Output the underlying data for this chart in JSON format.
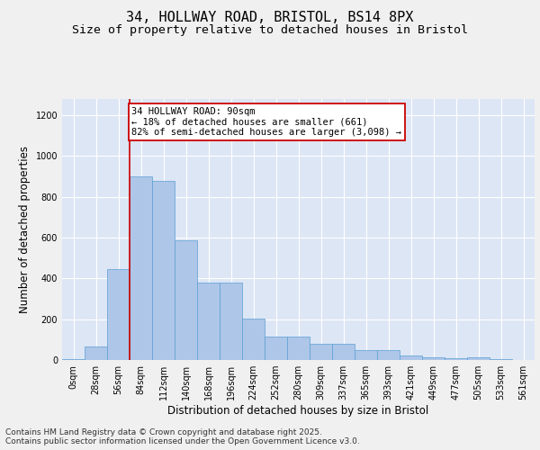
{
  "title_line1": "34, HOLLWAY ROAD, BRISTOL, BS14 8PX",
  "title_line2": "Size of property relative to detached houses in Bristol",
  "xlabel": "Distribution of detached houses by size in Bristol",
  "ylabel": "Number of detached properties",
  "bar_color": "#aec6e8",
  "bar_edge_color": "#5a9fd4",
  "background_color": "#dde6f5",
  "grid_color": "#ffffff",
  "annotation_box_color": "#cc0000",
  "vline_color": "#cc0000",
  "vline_x": 3,
  "annotation_text": "34 HOLLWAY ROAD: 90sqm\n← 18% of detached houses are smaller (661)\n82% of semi-detached houses are larger (3,098) →",
  "bin_labels": [
    "0sqm",
    "28sqm",
    "56sqm",
    "84sqm",
    "112sqm",
    "140sqm",
    "168sqm",
    "196sqm",
    "224sqm",
    "252sqm",
    "280sqm",
    "309sqm",
    "337sqm",
    "365sqm",
    "393sqm",
    "421sqm",
    "449sqm",
    "477sqm",
    "505sqm",
    "533sqm",
    "561sqm"
  ],
  "bar_heights": [
    5,
    65,
    445,
    900,
    880,
    585,
    380,
    380,
    205,
    115,
    115,
    80,
    80,
    50,
    48,
    20,
    13,
    10,
    15,
    3,
    2
  ],
  "ylim": [
    0,
    1280
  ],
  "yticks": [
    0,
    200,
    400,
    600,
    800,
    1000,
    1200
  ],
  "footer_text": "Contains HM Land Registry data © Crown copyright and database right 2025.\nContains public sector information licensed under the Open Government Licence v3.0.",
  "title_fontsize": 11,
  "subtitle_fontsize": 9.5,
  "axis_label_fontsize": 8.5,
  "tick_fontsize": 7,
  "annotation_fontsize": 7.5,
  "footer_fontsize": 6.5,
  "fig_bg_color": "#f0f0f0"
}
